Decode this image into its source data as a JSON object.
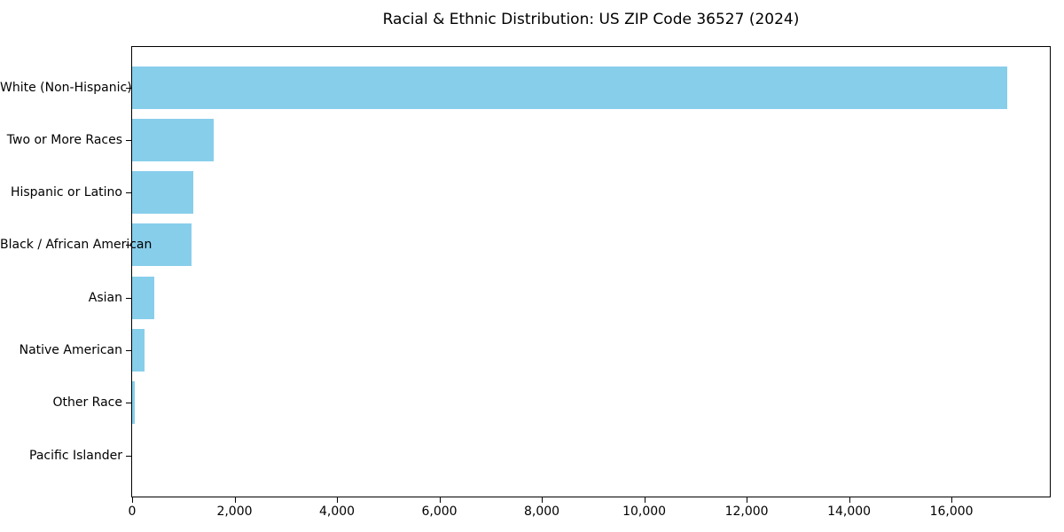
{
  "title": "Racial & Ethnic Distribution: US ZIP Code 36527 (2024)",
  "colors": {
    "bar": "#87CEEB",
    "axis": "#000000",
    "background": "#FFFFFF",
    "text": "#000000"
  },
  "chart_data": {
    "type": "bar",
    "orientation": "horizontal",
    "title": "Racial & Ethnic Distribution: US ZIP Code 36527 (2024)",
    "categories": [
      "White (Non-Hispanic)",
      "Two or More Races",
      "Hispanic or Latino",
      "Black / African American",
      "Asian",
      "Native American",
      "Other Race",
      "Pacific Islander"
    ],
    "values": [
      17090,
      1590,
      1190,
      1155,
      430,
      240,
      50,
      0
    ],
    "xlabel": "",
    "ylabel": "",
    "xlim": [
      0,
      17920
    ],
    "xticks": [
      0,
      2000,
      4000,
      6000,
      8000,
      10000,
      12000,
      14000,
      16000
    ],
    "xtick_labels": [
      "0",
      "2,000",
      "4,000",
      "6,000",
      "8,000",
      "10,000",
      "12,000",
      "14,000",
      "16,000"
    ],
    "grid": false,
    "legend": null,
    "bar_color": "#87CEEB"
  }
}
